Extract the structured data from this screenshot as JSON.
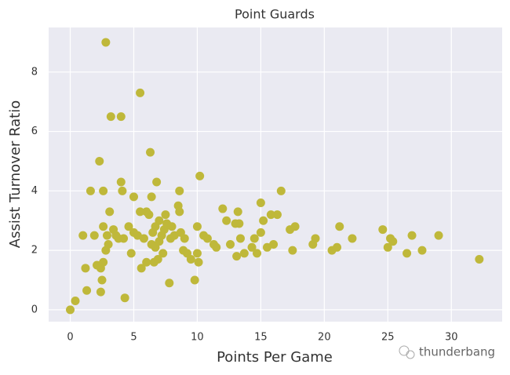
{
  "chart_data": {
    "type": "scatter",
    "title": "Point Guards",
    "x_label": "Points Per Game",
    "y_label": "Assist Turnover Ratio",
    "color": "#bfb83a",
    "grid": true,
    "watermark": "thunderbang",
    "xlim": [
      -1.7,
      34
    ],
    "ylim": [
      -0.4,
      9.5
    ],
    "xticks": [
      0,
      5,
      10,
      15,
      20,
      25,
      30
    ],
    "yticks": [
      0,
      2,
      4,
      6,
      8
    ],
    "x": [
      0,
      0.4,
      1,
      1.2,
      1.3,
      1.6,
      1.9,
      2.1,
      2.3,
      2.4,
      2.4,
      2.5,
      2.6,
      2.6,
      2.6,
      2.8,
      2.8,
      2.9,
      3,
      3.1,
      3.2,
      3.4,
      3.6,
      3.8,
      4,
      4,
      4.1,
      4.2,
      4.3,
      4.6,
      4.8,
      5,
      5,
      5.3,
      5.5,
      5.5,
      5.6,
      5.8,
      6,
      6,
      6.2,
      6.3,
      6.4,
      6.4,
      6.5,
      6.6,
      6.7,
      6.7,
      6.8,
      6.9,
      7,
      7,
      7.2,
      7.3,
      7.4,
      7.5,
      7.6,
      7.8,
      7.9,
      8,
      8.2,
      8.5,
      8.6,
      8.6,
      8.7,
      8.9,
      9,
      9.2,
      9.5,
      9.8,
      10,
      10,
      10.1,
      10.2,
      10.5,
      10.8,
      11.3,
      11.5,
      12,
      12.3,
      12.6,
      13,
      13.1,
      13.2,
      13.3,
      13.4,
      13.7,
      14.3,
      14.5,
      14.7,
      15,
      15,
      15.2,
      15.5,
      15.8,
      16,
      16.3,
      16.6,
      17.3,
      17.5,
      17.7,
      19.1,
      19.3,
      20.6,
      21,
      21.2,
      22.2,
      24.6,
      25,
      25.2,
      25.4,
      26.5,
      26.9,
      27.7,
      29,
      32.2
    ],
    "values": [
      0,
      0.3,
      2.5,
      1.4,
      0.65,
      4,
      2.5,
      1.5,
      5,
      0.6,
      1.4,
      1,
      1.6,
      2.8,
      4,
      2,
      9,
      2.5,
      2.2,
      3.3,
      6.5,
      2.7,
      2.5,
      2.4,
      6.5,
      4.3,
      4,
      2.4,
      0.4,
      2.8,
      1.9,
      2.6,
      3.8,
      2.5,
      7.3,
      3.3,
      1.4,
      2.4,
      1.6,
      3.3,
      3.2,
      5.3,
      2.2,
      3.8,
      2.6,
      1.6,
      2.1,
      2.8,
      4.3,
      1.7,
      3,
      2.3,
      2.5,
      1.9,
      2.7,
      3.2,
      2.9,
      0.9,
      2.4,
      2.8,
      2.5,
      3.5,
      4,
      3.3,
      2.6,
      2,
      2.4,
      1.9,
      1.7,
      1,
      1.9,
      2.8,
      1.6,
      4.5,
      2.5,
      2.4,
      2.2,
      2.1,
      3.4,
      3,
      2.2,
      2.9,
      1.8,
      3.3,
      2.9,
      2.4,
      1.9,
      2.1,
      2.4,
      1.9,
      2.6,
      3.6,
      3,
      2.1,
      3.2,
      2.2,
      3.2,
      4,
      2.7,
      2,
      2.8,
      2.2,
      2.4,
      2,
      2.1,
      2.8,
      2.4,
      2.7,
      2.1,
      2.4,
      2.3,
      1.9,
      2.5,
      2,
      2.5,
      1.7
    ]
  }
}
